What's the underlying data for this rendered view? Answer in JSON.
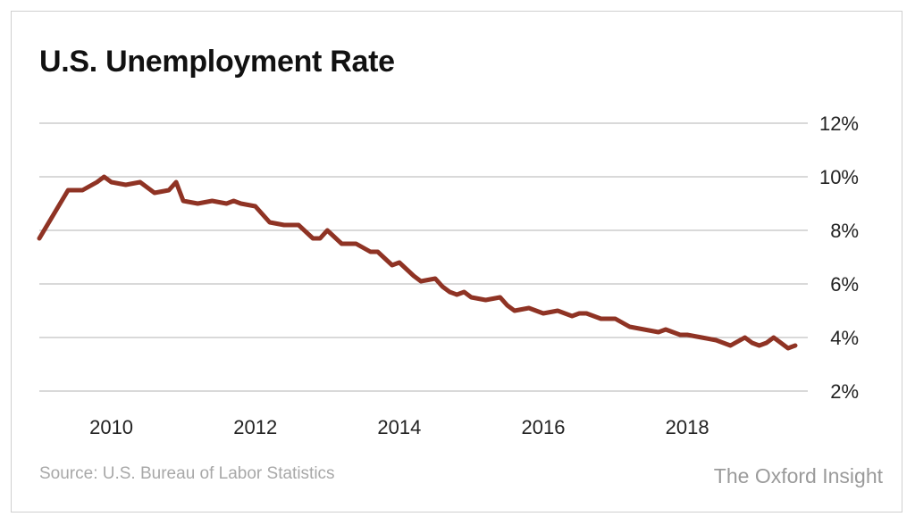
{
  "chart_data": {
    "type": "line",
    "title": "U.S. Unemployment Rate",
    "source": "Source: U.S. Bureau of Labor Statistics",
    "brand": "The Oxford Insight",
    "xlabel": "",
    "ylabel": "",
    "xlim": [
      2009.0,
      2019.5
    ],
    "ylim": [
      2,
      12
    ],
    "x_ticks": [
      2010,
      2012,
      2014,
      2016,
      2018
    ],
    "y_ticks": [
      2,
      4,
      6,
      8,
      10,
      12
    ],
    "y_tick_suffix": "%",
    "grid": "horizontal",
    "line_color": "#8f3324",
    "series": [
      {
        "x": [
          2009.0,
          2009.4,
          2009.6,
          2009.8,
          2009.9,
          2010.0,
          2010.2,
          2010.4,
          2010.6,
          2010.8,
          2010.9,
          2011.0,
          2011.2,
          2011.4,
          2011.6,
          2011.7,
          2011.8,
          2012.0,
          2012.2,
          2012.4,
          2012.6,
          2012.8,
          2012.9,
          2013.0,
          2013.2,
          2013.4,
          2013.6,
          2013.7,
          2013.9,
          2014.0,
          2014.2,
          2014.3,
          2014.5,
          2014.6,
          2014.7,
          2014.8,
          2014.9,
          2015.0,
          2015.2,
          2015.4,
          2015.5,
          2015.6,
          2015.8,
          2016.0,
          2016.2,
          2016.4,
          2016.5,
          2016.6,
          2016.8,
          2017.0,
          2017.2,
          2017.4,
          2017.6,
          2017.7,
          2017.9,
          2018.0,
          2018.2,
          2018.4,
          2018.6,
          2018.8,
          2018.9,
          2019.0,
          2019.1,
          2019.2,
          2019.3,
          2019.4,
          2019.5
        ],
        "values": [
          7.7,
          9.5,
          9.5,
          9.8,
          10.0,
          9.8,
          9.7,
          9.8,
          9.4,
          9.5,
          9.8,
          9.1,
          9.0,
          9.1,
          9.0,
          9.1,
          9.0,
          8.9,
          8.3,
          8.2,
          8.2,
          7.7,
          7.7,
          8.0,
          7.5,
          7.5,
          7.2,
          7.2,
          6.7,
          6.8,
          6.3,
          6.1,
          6.2,
          5.9,
          5.7,
          5.6,
          5.7,
          5.5,
          5.4,
          5.5,
          5.2,
          5.0,
          5.1,
          4.9,
          5.0,
          4.8,
          4.9,
          4.9,
          4.7,
          4.7,
          4.4,
          4.3,
          4.2,
          4.3,
          4.1,
          4.1,
          4.0,
          3.9,
          3.7,
          4.0,
          3.8,
          3.7,
          3.8,
          4.0,
          3.8,
          3.6,
          3.7
        ]
      }
    ]
  }
}
